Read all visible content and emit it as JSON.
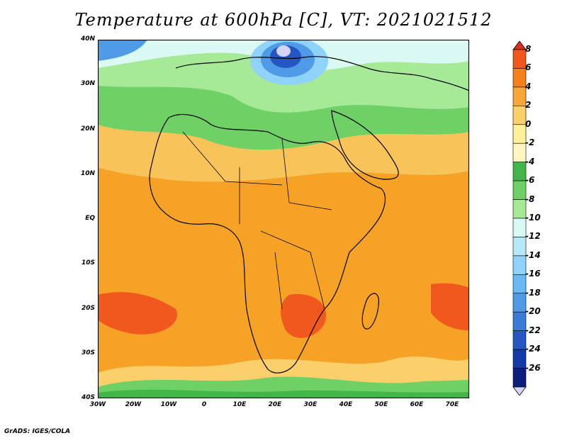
{
  "title": "Temperature at 600hPa [C], VT: 2021021512",
  "credit": "GrADS: IGES/COLA",
  "map": {
    "lon_labels": [
      "30W",
      "20W",
      "10W",
      "0",
      "10E",
      "20E",
      "30E",
      "40E",
      "50E",
      "60E",
      "70E"
    ],
    "lat_labels": [
      "40N",
      "30N",
      "20N",
      "10N",
      "EQ",
      "10S",
      "20S",
      "30S",
      "40S"
    ]
  },
  "colorbar": {
    "levels": [
      "8",
      "6",
      "4",
      "2",
      "0",
      "-2",
      "-4",
      "-6",
      "-8",
      "-10",
      "-12",
      "-14",
      "-16",
      "-18",
      "-20",
      "-22",
      "-24",
      "-26"
    ],
    "colors": [
      "#d7301f",
      "#f0581e",
      "#f6801c",
      "#f8a638",
      "#fbd06a",
      "#fff09a",
      "#fff7c1",
      "#43b649",
      "#6fd066",
      "#a6ea98",
      "#dbf9f3",
      "#b6e8f7",
      "#8fd3fa",
      "#6ab9f7",
      "#4f9be8",
      "#3a7bd8",
      "#2457c2",
      "#133aa8",
      "#0a1f7c",
      "#d6d4fb"
    ]
  },
  "chart_data": {
    "type": "heatmap",
    "title": "Temperature at 600hPa [C], VT: 2021021512",
    "xlabel": "",
    "ylabel": "",
    "x_range": [
      "30W",
      "70E"
    ],
    "y_range": [
      "40S",
      "40N"
    ],
    "x_ticks": [
      "30W",
      "20W",
      "10W",
      "0",
      "10E",
      "20E",
      "30E",
      "40E",
      "50E",
      "60E",
      "70E"
    ],
    "y_ticks": [
      "40N",
      "30N",
      "20N",
      "10N",
      "EQ",
      "10S",
      "20S",
      "30S",
      "40S"
    ],
    "contour_levels": [
      8,
      6,
      4,
      2,
      0,
      -2,
      -4,
      -6,
      -8,
      -10,
      -12,
      -14,
      -16,
      -18,
      -20,
      -22,
      -24,
      -26
    ],
    "units": "C"
  }
}
